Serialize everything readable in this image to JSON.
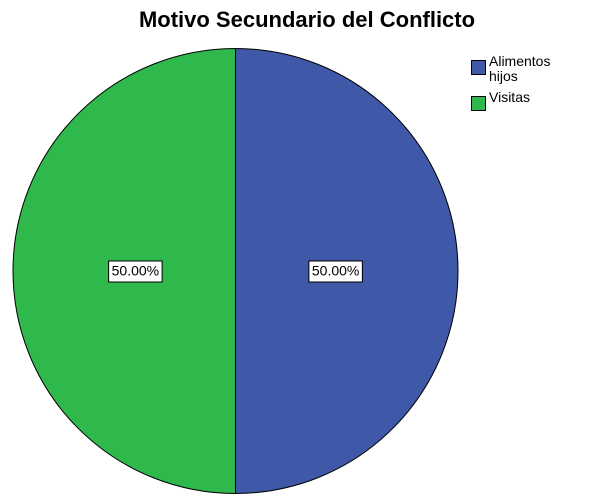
{
  "chart_data": {
    "type": "pie",
    "title": "Motivo Secundario del Conflicto",
    "categories": [
      "Alimentos hijos",
      "Visitas"
    ],
    "values": [
      50,
      50
    ],
    "value_labels": [
      "50.00%",
      "50.00%"
    ],
    "colors": [
      "#3f58a8",
      "#2fb84c"
    ],
    "legend": "top-right"
  }
}
